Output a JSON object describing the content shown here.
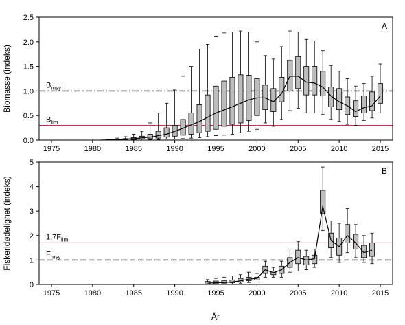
{
  "figure": {
    "xlabel": "År"
  },
  "chart_data": [
    {
      "type": "box",
      "panel": "A",
      "ylabel": "Biomasse (indeks)",
      "xlim": [
        1973.5,
        2016.5
      ],
      "ylim": [
        0,
        2.5
      ],
      "x_ticks": [
        1975,
        1980,
        1985,
        1990,
        1995,
        2000,
        2005,
        2010,
        2015
      ],
      "y_ticks": [
        "0.0",
        "0.5",
        "1.0",
        "1.5",
        "2.0",
        "2.5"
      ],
      "grid": false,
      "reference_lines": [
        {
          "main": "B",
          "sub": "msy",
          "value": 1.0,
          "color": "#000000",
          "style": "dashdot"
        },
        {
          "main": "B",
          "sub": "lim",
          "value": 0.3,
          "color": "#c03050",
          "style": "solid"
        }
      ],
      "boxes": [
        {
          "x": 1982,
          "lo": 0.0,
          "q1": 0.0,
          "q3": 0.01,
          "hi": 0.02
        },
        {
          "x": 1983,
          "lo": 0.0,
          "q1": 0.0,
          "q3": 0.02,
          "hi": 0.04
        },
        {
          "x": 1984,
          "lo": 0.0,
          "q1": 0.01,
          "q3": 0.03,
          "hi": 0.07
        },
        {
          "x": 1985,
          "lo": 0.0,
          "q1": 0.01,
          "q3": 0.05,
          "hi": 0.12
        },
        {
          "x": 1986,
          "lo": 0.0,
          "q1": 0.02,
          "q3": 0.08,
          "hi": 0.18
        },
        {
          "x": 1987,
          "lo": 0.01,
          "q1": 0.03,
          "q3": 0.12,
          "hi": 0.35
        },
        {
          "x": 1988,
          "lo": 0.01,
          "q1": 0.04,
          "q3": 0.18,
          "hi": 0.55
        },
        {
          "x": 1989,
          "lo": 0.02,
          "q1": 0.06,
          "q3": 0.25,
          "hi": 0.75
        },
        {
          "x": 1990,
          "lo": 0.02,
          "q1": 0.08,
          "q3": 0.3,
          "hi": 1.02
        },
        {
          "x": 1991,
          "lo": 0.03,
          "q1": 0.1,
          "q3": 0.42,
          "hi": 1.3
        },
        {
          "x": 1992,
          "lo": 0.04,
          "q1": 0.12,
          "q3": 0.55,
          "hi": 1.5
        },
        {
          "x": 1993,
          "lo": 0.05,
          "q1": 0.15,
          "q3": 0.72,
          "hi": 1.85
        },
        {
          "x": 1994,
          "lo": 0.07,
          "q1": 0.18,
          "q3": 0.92,
          "hi": 1.95
        },
        {
          "x": 1995,
          "lo": 0.09,
          "q1": 0.22,
          "q3": 1.1,
          "hi": 2.1
        },
        {
          "x": 1996,
          "lo": 0.1,
          "q1": 0.28,
          "q3": 1.2,
          "hi": 2.18
        },
        {
          "x": 1997,
          "lo": 0.12,
          "q1": 0.32,
          "q3": 1.28,
          "hi": 2.2
        },
        {
          "x": 1998,
          "lo": 0.15,
          "q1": 0.35,
          "q3": 1.33,
          "hi": 2.22
        },
        {
          "x": 1999,
          "lo": 0.18,
          "q1": 0.4,
          "q3": 1.32,
          "hi": 2.2
        },
        {
          "x": 2000,
          "lo": 0.22,
          "q1": 0.5,
          "q3": 1.25,
          "hi": 2.0
        },
        {
          "x": 2001,
          "lo": 0.35,
          "q1": 0.62,
          "q3": 1.12,
          "hi": 1.72
        },
        {
          "x": 2002,
          "lo": 0.28,
          "q1": 0.58,
          "q3": 1.05,
          "hi": 1.65
        },
        {
          "x": 2003,
          "lo": 0.42,
          "q1": 0.78,
          "q3": 1.28,
          "hi": 1.9
        },
        {
          "x": 2004,
          "lo": 0.6,
          "q1": 1.0,
          "q3": 1.62,
          "hi": 2.22
        },
        {
          "x": 2005,
          "lo": 0.65,
          "q1": 1.05,
          "q3": 1.7,
          "hi": 2.2
        },
        {
          "x": 2006,
          "lo": 0.55,
          "q1": 0.92,
          "q3": 1.5,
          "hi": 2.05
        },
        {
          "x": 2007,
          "lo": 0.55,
          "q1": 0.92,
          "q3": 1.5,
          "hi": 2.02
        },
        {
          "x": 2008,
          "lo": 0.52,
          "q1": 0.9,
          "q3": 1.4,
          "hi": 1.82
        },
        {
          "x": 2009,
          "lo": 0.42,
          "q1": 0.68,
          "q3": 1.08,
          "hi": 1.52
        },
        {
          "x": 2010,
          "lo": 0.38,
          "q1": 0.62,
          "q3": 1.05,
          "hi": 1.4
        },
        {
          "x": 2011,
          "lo": 0.32,
          "q1": 0.52,
          "q3": 0.88,
          "hi": 1.25
        },
        {
          "x": 2012,
          "lo": 0.3,
          "q1": 0.48,
          "q3": 0.8,
          "hi": 1.1
        },
        {
          "x": 2013,
          "lo": 0.4,
          "q1": 0.55,
          "q3": 0.9,
          "hi": 1.15
        },
        {
          "x": 2014,
          "lo": 0.45,
          "q1": 0.6,
          "q3": 0.98,
          "hi": 1.3
        },
        {
          "x": 2015,
          "lo": 0.55,
          "q1": 0.75,
          "q3": 1.15,
          "hi": 1.55
        }
      ],
      "median_line": {
        "x": [
          1981,
          1983,
          1985,
          1987,
          1989,
          1991,
          1993,
          1995,
          1997,
          1999,
          2000,
          2001,
          2002,
          2003,
          2004,
          2005,
          2006,
          2007,
          2008,
          2009,
          2010,
          2011,
          2012,
          2013,
          2014,
          2015
        ],
        "y": [
          0.0,
          0.01,
          0.03,
          0.06,
          0.12,
          0.24,
          0.38,
          0.55,
          0.68,
          0.82,
          0.86,
          0.86,
          0.78,
          0.95,
          1.3,
          1.3,
          1.18,
          1.16,
          1.08,
          0.9,
          0.78,
          0.7,
          0.58,
          0.66,
          0.7,
          0.9
        ]
      }
    },
    {
      "type": "box",
      "panel": "B",
      "ylabel": "Fiskeridødelighet (indeks)",
      "xlim": [
        1973.5,
        2016.5
      ],
      "ylim": [
        0,
        5
      ],
      "x_ticks": [
        1975,
        1980,
        1985,
        1990,
        1995,
        2000,
        2005,
        2010,
        2015
      ],
      "y_ticks": [
        "0",
        "1",
        "2",
        "3",
        "4",
        "5"
      ],
      "grid": false,
      "reference_lines": [
        {
          "main": "1,7F",
          "sub": "lim",
          "value": 1.7,
          "color": "#c03050",
          "style": "solid"
        },
        {
          "main": "F",
          "sub": "msy",
          "value": 1.0,
          "color": "#000000",
          "style": "dashed"
        }
      ],
      "boxes": [
        {
          "x": 1994,
          "lo": 0.0,
          "q1": 0.02,
          "q3": 0.12,
          "hi": 0.2
        },
        {
          "x": 1995,
          "lo": 0.0,
          "q1": 0.03,
          "q3": 0.14,
          "hi": 0.25
        },
        {
          "x": 1996,
          "lo": 0.01,
          "q1": 0.05,
          "q3": 0.15,
          "hi": 0.3
        },
        {
          "x": 1997,
          "lo": 0.02,
          "q1": 0.07,
          "q3": 0.18,
          "hi": 0.35
        },
        {
          "x": 1998,
          "lo": 0.05,
          "q1": 0.1,
          "q3": 0.25,
          "hi": 0.4
        },
        {
          "x": 1999,
          "lo": 0.08,
          "q1": 0.15,
          "q3": 0.3,
          "hi": 0.5
        },
        {
          "x": 2000,
          "lo": 0.1,
          "q1": 0.18,
          "q3": 0.3,
          "hi": 0.45
        },
        {
          "x": 2001,
          "lo": 0.3,
          "q1": 0.45,
          "q3": 0.75,
          "hi": 0.95
        },
        {
          "x": 2002,
          "lo": 0.3,
          "q1": 0.4,
          "q3": 0.55,
          "hi": 0.7
        },
        {
          "x": 2003,
          "lo": 0.3,
          "q1": 0.45,
          "q3": 0.75,
          "hi": 0.95
        },
        {
          "x": 2004,
          "lo": 0.5,
          "q1": 0.7,
          "q3": 1.1,
          "hi": 1.45
        },
        {
          "x": 2005,
          "lo": 0.55,
          "q1": 0.85,
          "q3": 1.4,
          "hi": 1.75
        },
        {
          "x": 2006,
          "lo": 0.6,
          "q1": 0.8,
          "q3": 1.15,
          "hi": 1.4
        },
        {
          "x": 2007,
          "lo": 0.7,
          "q1": 0.85,
          "q3": 1.2,
          "hi": 1.45
        },
        {
          "x": 2008,
          "lo": 2.2,
          "q1": 2.9,
          "q3": 3.85,
          "hi": 4.8
        },
        {
          "x": 2009,
          "lo": 1.1,
          "q1": 1.5,
          "q3": 2.1,
          "hi": 2.6
        },
        {
          "x": 2010,
          "lo": 0.9,
          "q1": 1.2,
          "q3": 1.9,
          "hi": 2.5
        },
        {
          "x": 2011,
          "lo": 1.3,
          "q1": 1.7,
          "q3": 2.45,
          "hi": 3.1
        },
        {
          "x": 2012,
          "lo": 1.1,
          "q1": 1.45,
          "q3": 2.05,
          "hi": 2.45
        },
        {
          "x": 2013,
          "lo": 0.9,
          "q1": 1.1,
          "q3": 1.6,
          "hi": 2.0
        },
        {
          "x": 2014,
          "lo": 0.85,
          "q1": 1.15,
          "q3": 1.7,
          "hi": 2.1
        }
      ],
      "median_line": {
        "x": [
          1994,
          1995,
          1996,
          1997,
          1998,
          1999,
          2000,
          2001,
          2002,
          2003,
          2004,
          2005,
          2006,
          2007,
          2008,
          2009,
          2010,
          2011,
          2012,
          2013,
          2014
        ],
        "y": [
          0.05,
          0.07,
          0.08,
          0.1,
          0.15,
          0.22,
          0.25,
          0.6,
          0.48,
          0.6,
          0.9,
          1.1,
          1.0,
          1.05,
          3.2,
          1.8,
          1.55,
          2.0,
          1.7,
          1.3,
          1.4
        ]
      }
    }
  ]
}
